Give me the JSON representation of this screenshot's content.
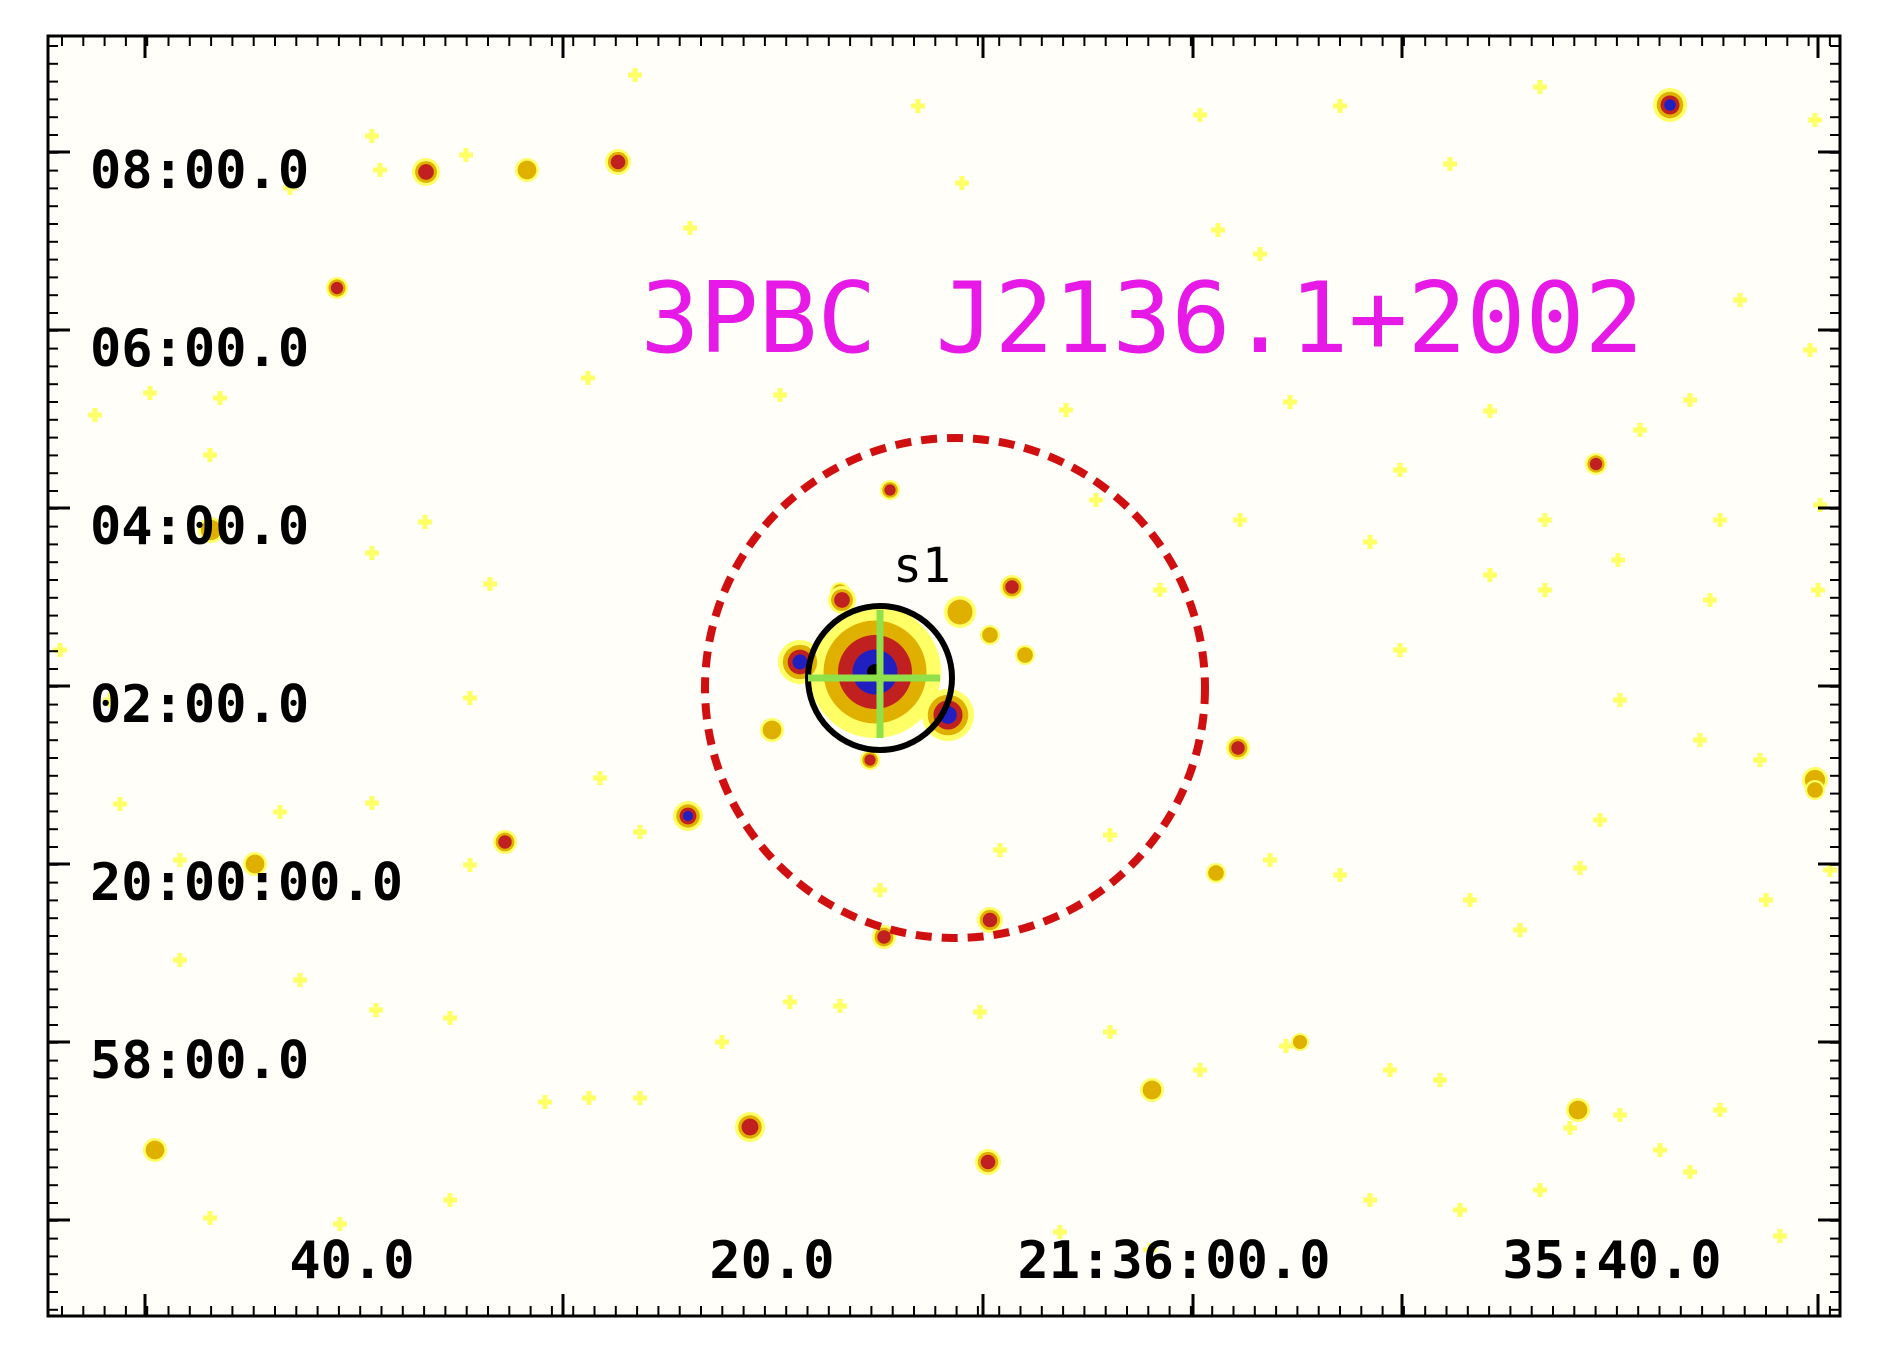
{
  "title": "3PBC J2136.1+2002",
  "colors": {
    "title": "#e619e6",
    "error_circle": "#d01010",
    "source_circle": "#000000",
    "crosshair": "#8fe04a",
    "frame": "#000000",
    "background": "#fffef8"
  },
  "source_label": "s1",
  "y_axis_labels": [
    "08:00.0",
    "06:00.0",
    "04:00.0",
    "02:00.0",
    "20:00:00.0",
    "58:00.0"
  ],
  "x_axis_labels": [
    "40.0",
    "20.0",
    "21:36:00.0",
    "35:40.0"
  ],
  "colormap": [
    "#ffff66",
    "#e0b000",
    "#c02020",
    "#2020c0",
    "#000000"
  ]
}
